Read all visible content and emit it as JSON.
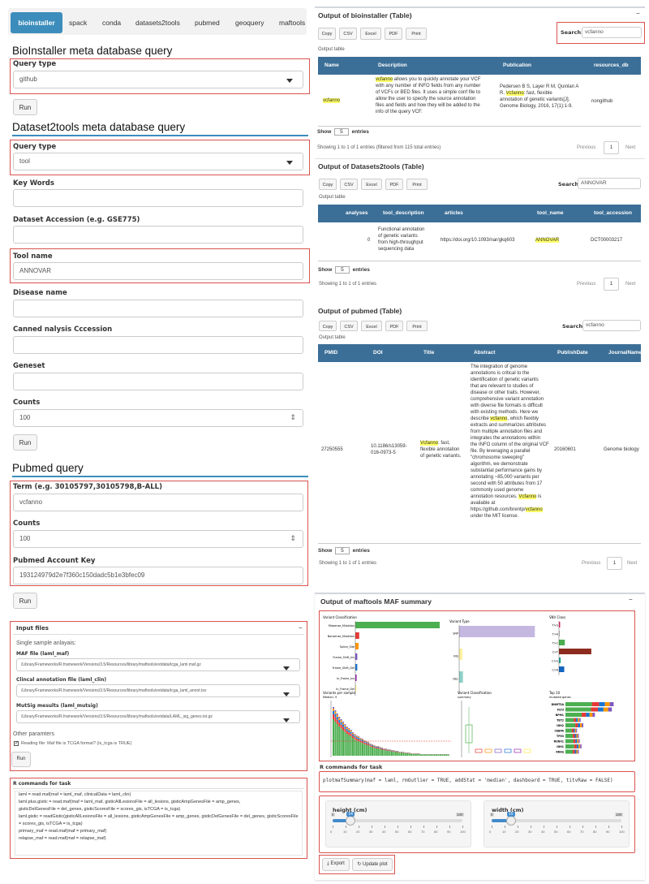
{
  "nav": {
    "tabs": [
      "bioinstaller",
      "spack",
      "conda",
      "datasets2tools",
      "pubmed",
      "geoquery",
      "maftools"
    ],
    "active": 0
  },
  "bio": {
    "title": "BioInstaller meta database query",
    "query_label": "Query type",
    "query_value": "github",
    "run": "Run"
  },
  "ds": {
    "title": "Dataset2tools meta database query",
    "query_label": "Query type",
    "query_value": "tool",
    "keywords_label": "Key Words",
    "accession_label": "Dataset Accession (e.g. GSE775)",
    "tool_label": "Tool name",
    "tool_value": "ANNOVAR",
    "disease_label": "Disease name",
    "canned_label": "Canned nalysis Cccession",
    "geneset_label": "Geneset",
    "counts_label": "Counts",
    "counts_value": "100",
    "run": "Run"
  },
  "pm": {
    "title": "Pubmed query",
    "term_label": "Term (e.g. 30105797,30105798,B-ALL)",
    "term_value": "vcfanno",
    "counts_label": "Counts",
    "counts_value": "100",
    "key_label": "Pubmed Account Key",
    "key_value": "193124979d2e7f360c150dadc5b1e3bfec09",
    "run": "Run"
  },
  "maf_inputs": {
    "title": "Input files",
    "collapse": "−",
    "single": "Single sample anlayais:",
    "maf_label": "MAF file (laml_maf)",
    "maf_value": "/Library/Frameworks/R.framework/Versions/3.5/Resources/library/maftools/extdata/tcga_laml.maf.gz",
    "clin_label": "Clincal annotation file (laml_clin)",
    "clin_value": "/Library/Frameworks/R.framework/Versions/3.5/Resources/library/maftools/extdata/tcga_laml_annot.tsv",
    "sig_label": "MutSig mesults (laml_mutsig)",
    "sig_value": "/Library/Frameworks/R.framework/Versions/3.5/Resources/library/maftools/extdata/LAML_sig_genes.txt.gz",
    "other": "Other paramters",
    "check": "Reading file: Maf file is TCGA format? (is_tcga is TRUE)",
    "run": "Run"
  },
  "rcmd_left": {
    "title": "R commands for task",
    "lines": [
      "laml = read.maf(maf = laml_maf, clinicalData = laml_clin)",
      "laml.plus.gistic = read.maf(maf = laml_maf, gisticAllLesionsFile = all_lesions, gisticAmpGenesFile = amp_genes,",
      "  gisticDelGenesFile = del_genes, gisticScoresFile = scores_gis, isTCGA = is_tcga)",
      "laml.gistic = readGistic(gisticAllLesionsFile = all_lesions, gisticAmpGenesFile = amp_genes, gisticDelGenesFile = del_genes, gisticScoresFile",
      "= scores_gis, isTCGA = is_tcga)",
      "primary_maf = read.maf(maf = primary_maf)",
      "relapse_maf = read.maf(maf = relapse_maf)"
    ]
  },
  "common": {
    "buttons": [
      "Copy",
      "CSV",
      "Excel",
      "PDF",
      "Print"
    ],
    "output_table": "Output table",
    "search": "Search:",
    "show": "Show",
    "entries": "entries",
    "previous": "Previous",
    "page": "1",
    "next": "Next",
    "collapse": "−"
  },
  "t1": {
    "title": "Output of bioinstaller (Table)",
    "search_value": "vcfanno",
    "headers": [
      "Name",
      "Description",
      "Publication",
      "resources_db"
    ],
    "name": "vcfanno",
    "desc_lines": [
      "vcfanno allows you to quickly annotate your VCF",
      "with any number of INFO fields from any number",
      "of VCFs or BED files. It uses a simple conf file to",
      "allow the user to specify the source annotation",
      "files and fields and how they will be added to the",
      "info of the query VCF."
    ],
    "pub_lines": [
      "Pedersen B S, Layer R M, Quinlan A",
      "R. Vcfanno: fast, flexible",
      "annotation of genetic variants[J].",
      "Genome Biology, 2016, 17(1):1-9."
    ],
    "db": "nongithub",
    "show_n": "5",
    "info": "Showing 1 to 1 of 1 entries (filtered from 115 total entries)"
  },
  "t2": {
    "title": "Output of Datasets2tools (Table)",
    "search_value": "ANNOVAR",
    "headers": [
      "analyses",
      "tool_description",
      "articles",
      "tool_name",
      "tool_accession"
    ],
    "analyses": "0",
    "desc_lines": [
      "Functional annotation",
      "of genetic variants",
      "from high-throughput",
      "sequencing data"
    ],
    "article": "https://doi.org/10.1093/nar/gkq603",
    "tool": "ANNOVAR",
    "accession": "DCT00003217",
    "show_n": "5",
    "info": "Showing 1 to 1 of 1 entries"
  },
  "t3": {
    "title": "Output of pubmed (Table)",
    "search_value": "vcfanno",
    "headers": [
      "PMID",
      "DOI",
      "Title",
      "Abstract",
      "PublishDate",
      "JournalName"
    ],
    "pmid": "27250555",
    "doi_lines": [
      "10.1186/s13059-",
      "016-0973-5"
    ],
    "title_lines": [
      "Vcfanno: fast,",
      "flexible annotation",
      "of genetic variants."
    ],
    "abstract_lines": [
      "The integration of genome",
      "annotations is critical to the",
      "identification of genetic variants",
      "that are relevant to studies of",
      "disease or other traits. However,",
      "comprehensive variant annotation",
      "with diverse file formats is difficult",
      "with existing methods. Here we",
      "describe vcfanno, which flexibly",
      "extracts and summarizes attributes",
      "from multiple annotation files and",
      "integrates the annotations within",
      "the INFO column of the original VCF",
      "file. By leveraging a parallel",
      "\"chromosome sweeping\"",
      "algorithm, we demonstrate",
      "substantial performance gains by",
      "annotating ~85,000 variants per",
      "second with 50 attributes from 17",
      "commonly used genome",
      "annotation resources. Vcfanno is",
      "available at",
      "https://github.com/brentp/vcfanno",
      "under the MIT license."
    ],
    "date": "20160601",
    "journal": "Genome biology",
    "show_n": "5",
    "info": "Showing 1 to 1 of 1 entries"
  },
  "maf": {
    "title": "Output of maftools MAF summary",
    "vc_title": "Variant Classification",
    "vt_title": "Variant Type",
    "snv_title": "SNV Class",
    "vps_title": "Variants per sample",
    "vps_sub": "Median: 9",
    "vcs_title": "Variant Classification",
    "vcs_sub": "summary",
    "top_title": "Top 10",
    "top_sub": "mutated genes",
    "vc_labels": [
      "Missense_Mutation",
      "Nonsense_Mutation",
      "Splice_Site",
      "Frame_Shift_Ins",
      "Frame_Shift_Del",
      "In_Frame_Ins",
      "In_Frame_Del"
    ],
    "vt_labels": [
      "SNP",
      "INS",
      "DEL"
    ],
    "snv_labels": [
      "T>G",
      "T>A",
      "T>C",
      "C>T",
      "C>G",
      "C>A"
    ],
    "genes": [
      "DNMT3A",
      "FLT3",
      "NPM1",
      "TET2",
      "IDH2",
      "CEBPA",
      "TP53",
      "RUNX1",
      "IDH1",
      "KRAS"
    ]
  },
  "rcmd_right": {
    "title": "R commands for task",
    "cmd": "plotmafSummary(maf = laml, rmOutlier = TRUE, addStat = 'median', dashboard = TRUE, titvRaw = FALSE)"
  },
  "sliders": {
    "height_label": "height (cm)",
    "height_value": "14",
    "height_min": "0",
    "height_max": "100",
    "width_label": "width (cm)",
    "width_value": "15",
    "width_min": "0",
    "width_max": "100",
    "ticks": [
      "0",
      "10",
      "20",
      "30",
      "40",
      "50",
      "60",
      "70",
      "80",
      "90",
      "100"
    ]
  },
  "actions": {
    "export": "Export",
    "update": "Update plot"
  },
  "colors": {
    "accent": "#3c8dbc",
    "header": "#3c6f97",
    "highlight": "#ffff66",
    "error_border": "#d9534f"
  },
  "chart_data": [
    {
      "type": "bar",
      "orientation": "horizontal",
      "categories": [
        "Missense_Mutation",
        "Nonsense_Mutation",
        "Splice_Site",
        "Frame_Shift_Ins",
        "Frame_Shift_Del",
        "In_Frame_Ins",
        "In_Frame_Del"
      ],
      "values": [
        130,
        6,
        5,
        3,
        3,
        2,
        1
      ],
      "colors": [
        "#4caf50",
        "#e53935",
        "#ff9800",
        "#7e57c2",
        "#1976d2",
        "#9c27b0",
        "#ffeb3b"
      ],
      "xlim": [
        0,
        150
      ]
    },
    {
      "type": "bar",
      "orientation": "horizontal",
      "categories": [
        "SNP",
        "INS",
        "DEL"
      ],
      "values": [
        140,
        6,
        7
      ],
      "colors": [
        "#c5b8e0",
        "#fff2a0",
        "#8fd1c8"
      ],
      "xlim": [
        0,
        150
      ]
    },
    {
      "type": "bar",
      "orientation": "horizontal",
      "categories": [
        "T>G",
        "T>A",
        "T>C",
        "C>T",
        "C>G",
        "C>A"
      ],
      "values": [
        2,
        1,
        10,
        55,
        3,
        9
      ],
      "colors": [
        "#e91e63",
        "#9e9e9e",
        "#4caf50",
        "#8d2b1e",
        "#26a69a",
        "#1565c0"
      ],
      "xlim": [
        0,
        80
      ]
    },
    {
      "type": "bar",
      "orientation": "horizontal",
      "categories": [
        "DNMT3A",
        "FLT3",
        "NPM1",
        "TET2",
        "IDH2",
        "CEBPA",
        "TP53",
        "RUNX1",
        "IDH1",
        "KRAS"
      ],
      "values": [
        54,
        52,
        33,
        17,
        20,
        13,
        15,
        16,
        18,
        15
      ]
    }
  ]
}
